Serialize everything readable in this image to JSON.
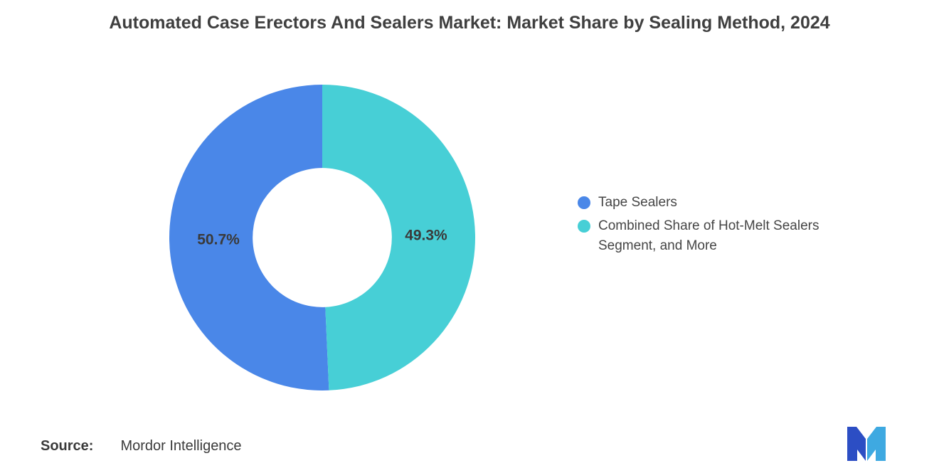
{
  "chart_data": {
    "type": "pie",
    "subtype": "donut",
    "title": "Automated Case Erectors And Sealers Market: Market Share by Sealing Method, 2024",
    "unit": "%",
    "slices": [
      {
        "label": "Tape Sealers",
        "value": 50.7,
        "display": "50.7%",
        "color": "#4A87E8"
      },
      {
        "label": "Combined Share of Hot-Melt Sealers Segment, and More",
        "value": 49.3,
        "display": "49.3%",
        "color": "#47CFD6"
      }
    ],
    "start_angle_deg": -90,
    "direction": "counterclockwise",
    "inner_radius_ratio": 0.455,
    "label_color": "#3a3a3a",
    "legend_position": "right",
    "grid": false
  },
  "legend": {
    "items": [
      {
        "label": "Tape Sealers",
        "color": "#4A87E8"
      },
      {
        "label": "Combined Share of Hot-Melt Sealers Segment, and More",
        "color": "#47CFD6"
      }
    ]
  },
  "footer": {
    "source_label": "Source:",
    "source_text": "Mordor Intelligence"
  },
  "logo": {
    "name": "mordor-intelligence-logo",
    "color_dark": "#2C4EC4",
    "color_light": "#3EA9E1"
  }
}
